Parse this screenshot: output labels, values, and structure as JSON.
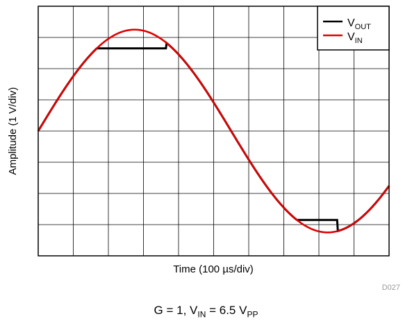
{
  "chart_data": {
    "type": "line",
    "xlabel": "Time (100 µs/div)",
    "ylabel": "Amplitude (1 V/div)",
    "x_divisions": 10,
    "y_divisions": 8,
    "xlim": [
      0,
      1000
    ],
    "ylim": [
      -4,
      4
    ],
    "grid": true,
    "legend_placement": "top-right",
    "series": [
      {
        "name": "VOUT",
        "color": "#000000",
        "amplitude": 3.25,
        "clip_high": 2.65,
        "clip_high_x_range": [
          164,
          364
        ],
        "clip_low": -2.85,
        "clip_low_x_range": [
          667,
          853
        ]
      },
      {
        "name": "VIN",
        "color": "#e00000",
        "amplitude": 3.25,
        "period": 1100,
        "phase_start": 0
      }
    ],
    "legend": [
      {
        "main": "V",
        "sub": "OUT",
        "color": "#000000"
      },
      {
        "main": "V",
        "sub": "IN",
        "color": "#e00000"
      }
    ]
  },
  "figure_id": "D027",
  "caption": {
    "g_text": "G = 1, V",
    "in_sub": "IN",
    "eq_text": " = 6.5 V",
    "pp_sub": "PP"
  }
}
